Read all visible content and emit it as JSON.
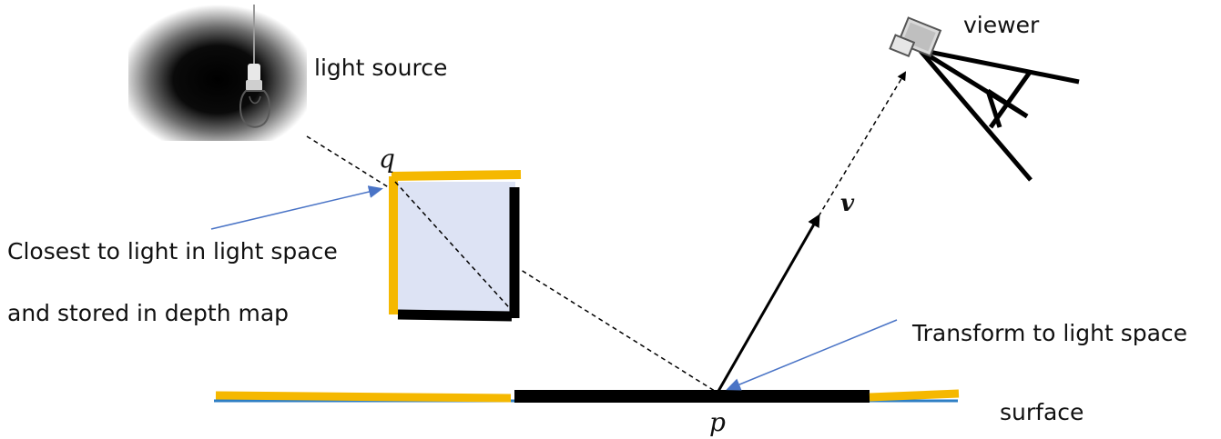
{
  "labels": {
    "light_source": "light source",
    "viewer": "viewer",
    "closest_line1": "Closest to light in light space",
    "closest_line2": "and stored in depth map",
    "transform": "Transform to light space",
    "surface": "surface",
    "q": "q",
    "p": "p",
    "v": "v"
  },
  "colors": {
    "occluder_fill": "#dde3f4",
    "lit_edge": "#f5b800",
    "shadow_edge": "#000000",
    "annotation_arrow": "#4a74c6",
    "surface_base": "#2f7fc4"
  },
  "icons": {
    "light": "light-bulb-icon",
    "viewer": "camera-icon"
  }
}
